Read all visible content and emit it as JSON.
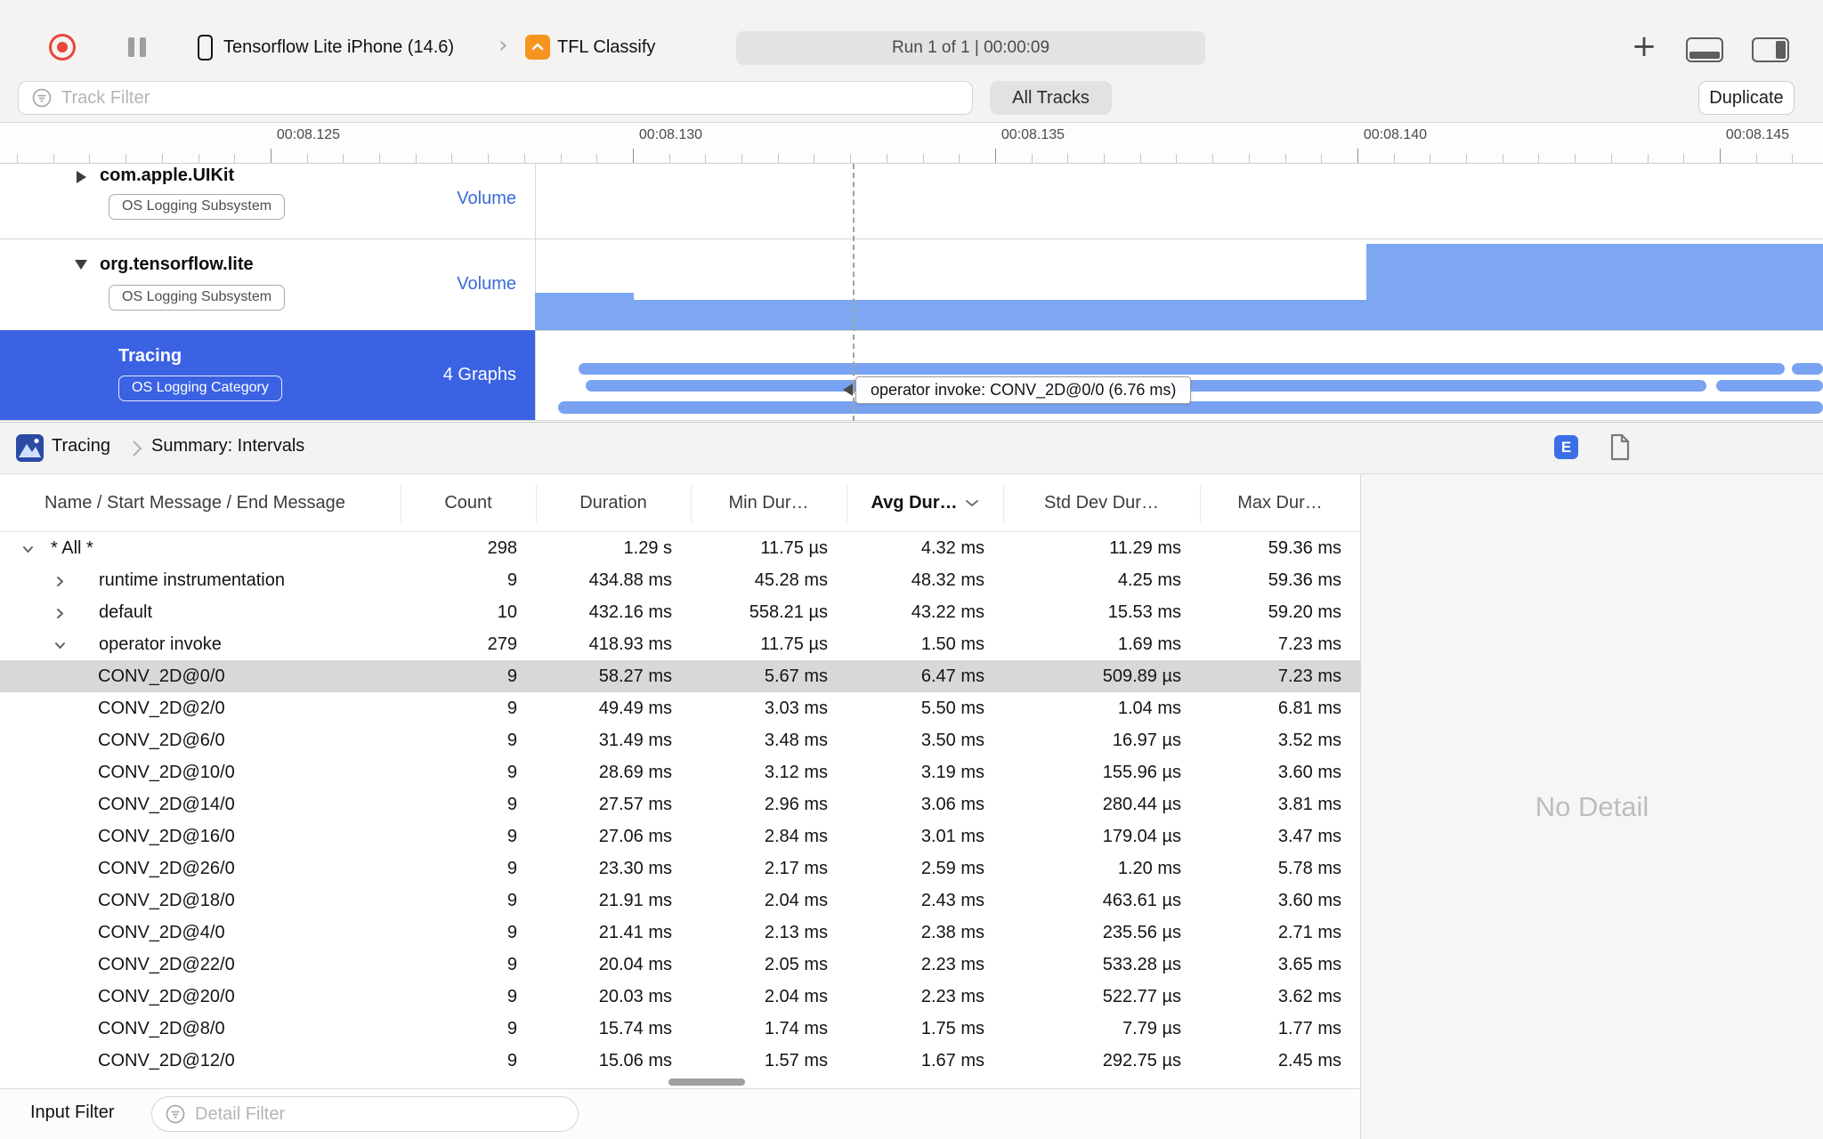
{
  "toolbar": {
    "device_name": "Tensorflow Lite iPhone (14.6)",
    "process_name": "TFL Classify",
    "run_status": "Run 1 of 1  |  00:00:09",
    "add_label": "+"
  },
  "filter_bar": {
    "track_filter_placeholder": "Track Filter",
    "all_tracks_label": "All Tracks",
    "duplicate_label": "Duplicate"
  },
  "timeline": {
    "ruler_labels": [
      "00:08.125",
      "00:08.130",
      "00:08.135",
      "00:08.140",
      "00:08.145"
    ],
    "tracks": [
      {
        "name": "com.apple.UIKit",
        "badge": "OS Logging Subsystem",
        "meta": "Volume",
        "disclosure": "collapsed",
        "selected": false
      },
      {
        "name": "org.tensorflow.lite",
        "badge": "OS Logging Subsystem",
        "meta": "Volume",
        "disclosure": "expanded",
        "selected": false
      },
      {
        "name": "Tracing",
        "badge": "OS Logging Category",
        "meta": "4 Graphs",
        "disclosure": "none",
        "selected": true
      }
    ],
    "tooltip": "operator invoke: CONV_2D@0/0 (6.76 ms)"
  },
  "detail": {
    "breadcrumb_root": "Tracing",
    "breadcrumb_page": "Summary: Intervals",
    "view_mode_button": "E",
    "no_detail": "No Detail",
    "input_filter_label": "Input Filter",
    "detail_filter_placeholder": "Detail Filter",
    "table": {
      "columns": [
        "Name / Start Message / End Message",
        "Count",
        "Duration",
        "Min Dur…",
        "Avg Dur…",
        "Std Dev Dur…",
        "Max Dur…"
      ],
      "sort_column": "Avg Dur…",
      "rows": [
        {
          "name": "* All *",
          "level": 0,
          "disclosure": "expanded",
          "selected": false,
          "count": "298",
          "duration": "1.29 s",
          "min": "11.75 µs",
          "avg": "4.32 ms",
          "stddev": "11.29 ms",
          "max": "59.36 ms"
        },
        {
          "name": "runtime instrumentation",
          "level": 1,
          "disclosure": "collapsed",
          "selected": false,
          "count": "9",
          "duration": "434.88 ms",
          "min": "45.28 ms",
          "avg": "48.32 ms",
          "stddev": "4.25 ms",
          "max": "59.36 ms"
        },
        {
          "name": "default",
          "level": 1,
          "disclosure": "collapsed",
          "selected": false,
          "count": "10",
          "duration": "432.16 ms",
          "min": "558.21 µs",
          "avg": "43.22 ms",
          "stddev": "15.53 ms",
          "max": "59.20 ms"
        },
        {
          "name": "operator invoke",
          "level": 1,
          "disclosure": "expanded",
          "selected": false,
          "count": "279",
          "duration": "418.93 ms",
          "min": "11.75 µs",
          "avg": "1.50 ms",
          "stddev": "1.69 ms",
          "max": "7.23 ms"
        },
        {
          "name": "CONV_2D@0/0",
          "level": 2,
          "disclosure": "leaf",
          "selected": true,
          "count": "9",
          "duration": "58.27 ms",
          "min": "5.67 ms",
          "avg": "6.47 ms",
          "stddev": "509.89 µs",
          "max": "7.23 ms"
        },
        {
          "name": "CONV_2D@2/0",
          "level": 2,
          "disclosure": "leaf",
          "selected": false,
          "count": "9",
          "duration": "49.49 ms",
          "min": "3.03 ms",
          "avg": "5.50 ms",
          "stddev": "1.04 ms",
          "max": "6.81 ms"
        },
        {
          "name": "CONV_2D@6/0",
          "level": 2,
          "disclosure": "leaf",
          "selected": false,
          "count": "9",
          "duration": "31.49 ms",
          "min": "3.48 ms",
          "avg": "3.50 ms",
          "stddev": "16.97 µs",
          "max": "3.52 ms"
        },
        {
          "name": "CONV_2D@10/0",
          "level": 2,
          "disclosure": "leaf",
          "selected": false,
          "count": "9",
          "duration": "28.69 ms",
          "min": "3.12 ms",
          "avg": "3.19 ms",
          "stddev": "155.96 µs",
          "max": "3.60 ms"
        },
        {
          "name": "CONV_2D@14/0",
          "level": 2,
          "disclosure": "leaf",
          "selected": false,
          "count": "9",
          "duration": "27.57 ms",
          "min": "2.96 ms",
          "avg": "3.06 ms",
          "stddev": "280.44 µs",
          "max": "3.81 ms"
        },
        {
          "name": "CONV_2D@16/0",
          "level": 2,
          "disclosure": "leaf",
          "selected": false,
          "count": "9",
          "duration": "27.06 ms",
          "min": "2.84 ms",
          "avg": "3.01 ms",
          "stddev": "179.04 µs",
          "max": "3.47 ms"
        },
        {
          "name": "CONV_2D@26/0",
          "level": 2,
          "disclosure": "leaf",
          "selected": false,
          "count": "9",
          "duration": "23.30 ms",
          "min": "2.17 ms",
          "avg": "2.59 ms",
          "stddev": "1.20 ms",
          "max": "5.78 ms"
        },
        {
          "name": "CONV_2D@18/0",
          "level": 2,
          "disclosure": "leaf",
          "selected": false,
          "count": "9",
          "duration": "21.91 ms",
          "min": "2.04 ms",
          "avg": "2.43 ms",
          "stddev": "463.61 µs",
          "max": "3.60 ms"
        },
        {
          "name": "CONV_2D@4/0",
          "level": 2,
          "disclosure": "leaf",
          "selected": false,
          "count": "9",
          "duration": "21.41 ms",
          "min": "2.13 ms",
          "avg": "2.38 ms",
          "stddev": "235.56 µs",
          "max": "2.71 ms"
        },
        {
          "name": "CONV_2D@22/0",
          "level": 2,
          "disclosure": "leaf",
          "selected": false,
          "count": "9",
          "duration": "20.04 ms",
          "min": "2.05 ms",
          "avg": "2.23 ms",
          "stddev": "533.28 µs",
          "max": "3.65 ms"
        },
        {
          "name": "CONV_2D@20/0",
          "level": 2,
          "disclosure": "leaf",
          "selected": false,
          "count": "9",
          "duration": "20.03 ms",
          "min": "2.04 ms",
          "avg": "2.23 ms",
          "stddev": "522.77 µs",
          "max": "3.62 ms"
        },
        {
          "name": "CONV_2D@8/0",
          "level": 2,
          "disclosure": "leaf",
          "selected": false,
          "count": "9",
          "duration": "15.74 ms",
          "min": "1.74 ms",
          "avg": "1.75 ms",
          "stddev": "7.79 µs",
          "max": "1.77 ms"
        },
        {
          "name": "CONV_2D@12/0",
          "level": 2,
          "disclosure": "leaf",
          "selected": false,
          "count": "9",
          "duration": "15.06 ms",
          "min": "1.57 ms",
          "avg": "1.67 ms",
          "stddev": "292.75 µs",
          "max": "2.45 ms"
        }
      ]
    }
  },
  "colors": {
    "accent_blue": "#3a62e3",
    "graph_blue": "#79a3f2",
    "link_blue": "#3a6bd8",
    "selected_row": "#d8d8d8"
  }
}
